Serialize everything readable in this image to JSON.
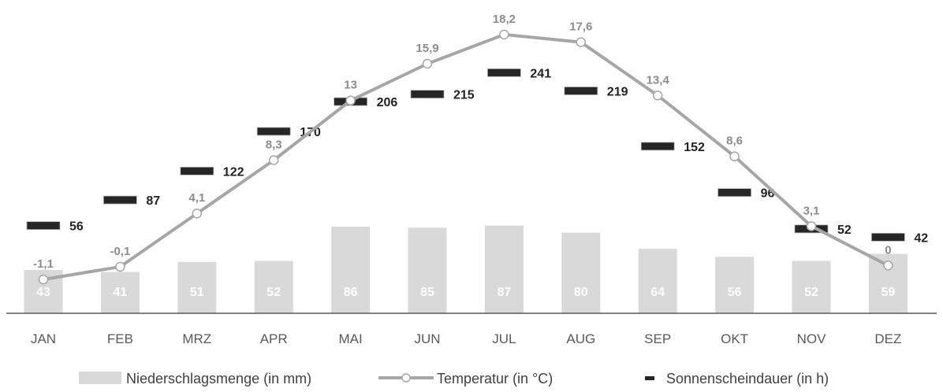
{
  "chart_data": {
    "type": "bar",
    "categories": [
      "JAN",
      "FEB",
      "MRZ",
      "APR",
      "MAI",
      "JUN",
      "JUL",
      "AUG",
      "SEP",
      "OKT",
      "NOV",
      "DEZ"
    ],
    "series": [
      {
        "name": "Niederschlagsmenge (in mm)",
        "type": "bar",
        "values": [
          43,
          41,
          51,
          52,
          86,
          85,
          87,
          80,
          64,
          56,
          52,
          59
        ],
        "labels": [
          "43",
          "41",
          "51",
          "52",
          "86",
          "85",
          "87",
          "80",
          "64",
          "56",
          "52",
          "59"
        ]
      },
      {
        "name": "Temperatur (in °C)",
        "type": "line",
        "values": [
          -1.1,
          -0.1,
          4.1,
          8.3,
          13,
          15.9,
          18.2,
          17.6,
          13.4,
          8.6,
          3.1,
          0
        ],
        "labels": [
          "-1,1",
          "-0,1",
          "4,1",
          "8,3",
          "13",
          "15,9",
          "18,2",
          "17,6",
          "13,4",
          "8,6",
          "3,1",
          "0"
        ]
      },
      {
        "name": "Sonnenscheindauer (in h)",
        "type": "marker",
        "values": [
          56,
          87,
          122,
          170,
          206,
          215,
          241,
          219,
          152,
          96,
          52,
          42
        ],
        "labels": [
          "56",
          "87",
          "122",
          "170",
          "206",
          "215",
          "241",
          "219",
          "152",
          "96",
          "52",
          "42"
        ]
      }
    ],
    "title": "",
    "xlabel": "",
    "ylabel": "",
    "legend": "bottom",
    "grid": false,
    "colors": {
      "bar": "#d9d9d9",
      "line": "#a6a6a6",
      "marker": "#262626",
      "bar_label": "#ffffff",
      "temp_label": "#8c8c8c",
      "sun_label": "#222222",
      "axis": "#595959"
    }
  }
}
